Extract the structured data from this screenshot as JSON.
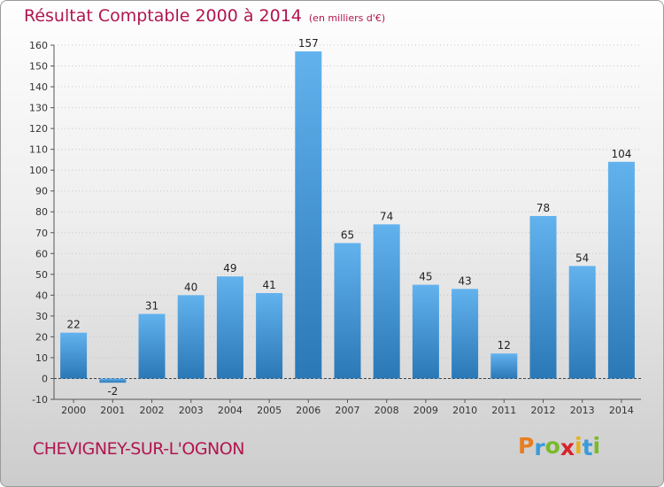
{
  "header": {
    "title": "Résultat Comptable 2000 à 2014",
    "unit": "(en milliers d'€)"
  },
  "footer": {
    "place": "CHEVIGNEY-SUR-L'OGNON"
  },
  "logo": {
    "letters": [
      "P",
      "r",
      "o",
      "x",
      "i",
      "t",
      "i"
    ],
    "colors": [
      "#e97d1e",
      "#3a9bd9",
      "#7ab929",
      "#d8232a",
      "#e6b21b",
      "#3a9bd9",
      "#7ab929"
    ]
  },
  "colors": {
    "bar_top": "#62b2ee",
    "bar_bottom": "#2a78b6",
    "accent": "#b2154f"
  },
  "chart_data": {
    "type": "bar",
    "categories": [
      "2000",
      "2001",
      "2002",
      "2003",
      "2004",
      "2005",
      "2006",
      "2007",
      "2008",
      "2009",
      "2010",
      "2011",
      "2012",
      "2013",
      "2014"
    ],
    "values": [
      22,
      -2,
      31,
      40,
      49,
      41,
      157,
      65,
      74,
      45,
      43,
      12,
      78,
      54,
      104
    ],
    "title": "Résultat Comptable 2000 à 2014",
    "ylim": [
      -10,
      160
    ],
    "yticks": [
      -10,
      0,
      10,
      20,
      30,
      40,
      50,
      60,
      70,
      80,
      90,
      100,
      110,
      120,
      130,
      140,
      150,
      160
    ],
    "grid": true
  }
}
